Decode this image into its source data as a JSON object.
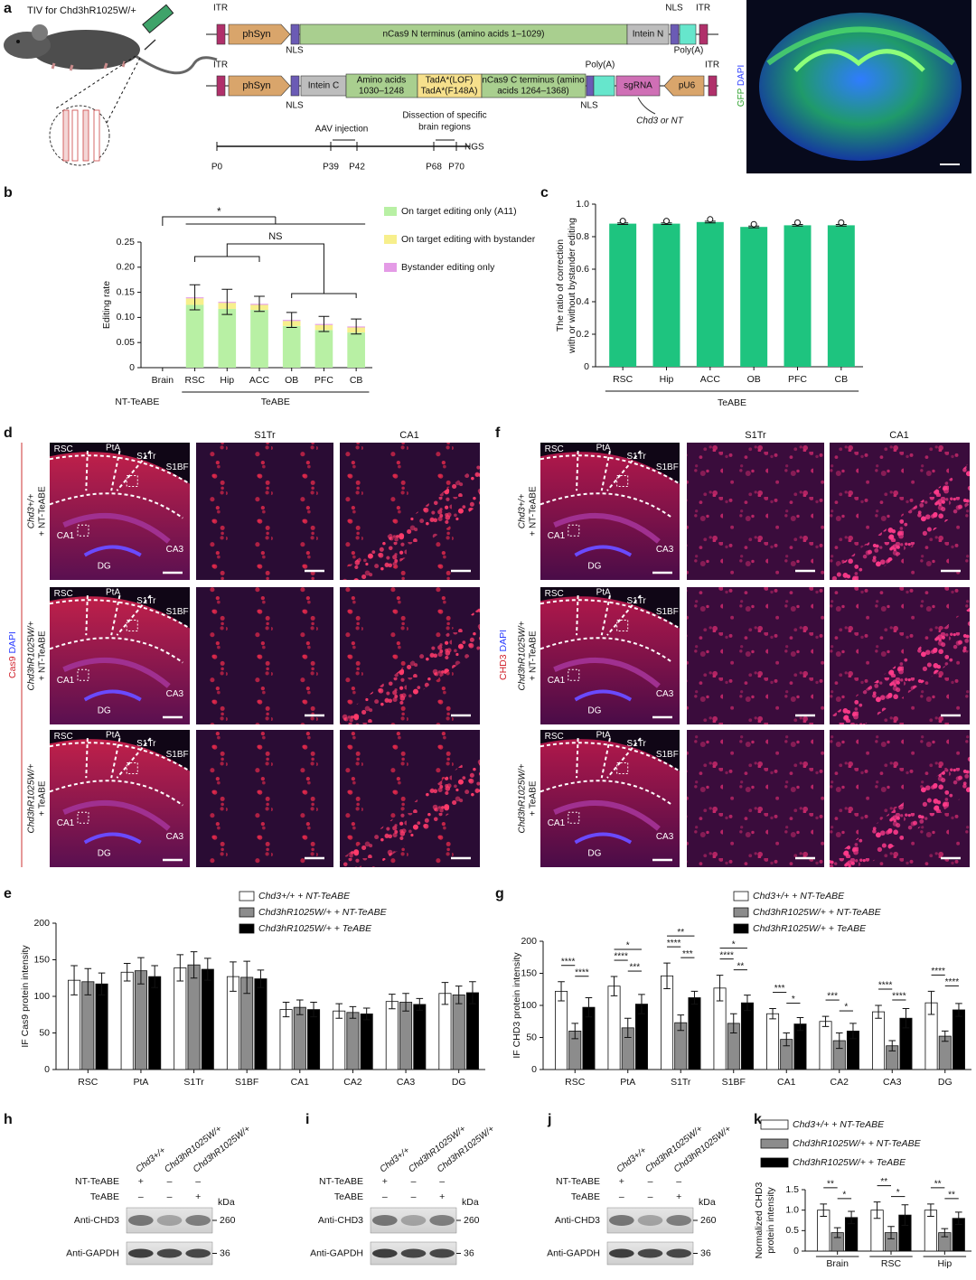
{
  "panel_labels": [
    "a",
    "b",
    "c",
    "d",
    "e",
    "f",
    "g",
    "h",
    "i",
    "j",
    "k"
  ],
  "a": {
    "mouse": "TIV for Chd3hR1025W/+",
    "vector1": [
      "ITR",
      "phSyn",
      "NLS",
      "nCas9 N terminus (amino acids 1–1029)",
      "Intein N",
      "NLS",
      "Poly(A)",
      "ITR"
    ],
    "vector2": [
      "ITR",
      "phSyn",
      "NLS",
      "Intein C",
      [
        "Amino acids",
        "1030–1248"
      ],
      [
        "TadA*(LOF)",
        "TadA*(F148A)"
      ],
      [
        "nCas9 C terminus (amino",
        "acids 1264–1368)"
      ],
      "Poly(A)",
      "NLS",
      "sgRNA",
      "pU6",
      "ITR",
      "Chd3 or NT"
    ],
    "timeline": {
      "points": [
        "P0",
        "P39",
        "P42",
        "P68",
        "P70"
      ],
      "events": [
        "AAV injection",
        [
          "Dissection of specific",
          "brain regions"
        ],
        "NGS"
      ]
    },
    "image_label": [
      "GFP",
      "DAPI"
    ]
  },
  "chart_data": [
    {
      "type": "bar",
      "stacked": true,
      "ylabel": "Editing rate",
      "categories": [
        "Brain",
        "RSC",
        "Hip",
        "ACC",
        "OB",
        "PFC",
        "CB"
      ],
      "series": [
        {
          "name": "On target editing only (A11)",
          "color": "#b8f0a4",
          "values": [
            0,
            0.125,
            0.117,
            0.115,
            0.083,
            0.075,
            0.07
          ]
        },
        {
          "name": "On target editing with bystander",
          "color": "#f7ef8c",
          "values": [
            0,
            0.013,
            0.012,
            0.01,
            0.01,
            0.01,
            0.01
          ]
        },
        {
          "name": "Bystander editing only",
          "color": "#e49be6",
          "values": [
            0,
            0.002,
            0.002,
            0.002,
            0.002,
            0.002,
            0.002
          ]
        }
      ],
      "errors": [
        0,
        0.025,
        0.025,
        0.015,
        0.015,
        0.015,
        0.015
      ],
      "groups": [
        "NT-TeABE",
        "TeABE"
      ],
      "annotations": [
        "*",
        "NS"
      ],
      "ylim": [
        0,
        0.25
      ],
      "yticks": [
        0,
        0.05,
        {
          "value": 0.1,
          "label": "0.10"
        },
        0.15,
        {
          "value": 0.2,
          "label": "0.20"
        },
        0.25
      ],
      "grid": false
    },
    {
      "type": "bar",
      "ylabel": [
        "The ratio of correction",
        "with or without bystander editing"
      ],
      "categories": [
        "RSC",
        "Hip",
        "ACC",
        "OB",
        "PFC",
        "CB"
      ],
      "values": [
        0.88,
        0.88,
        0.89,
        0.86,
        0.87,
        0.87
      ],
      "errors": [
        0.005,
        0.005,
        0.005,
        0.005,
        0.005,
        0.005
      ],
      "color": "#1ec47f",
      "groups": [
        "TeABE"
      ],
      "ylim": [
        0,
        1
      ],
      "yticks": [
        0,
        0.2,
        0.4,
        0.6,
        0.8,
        {
          "value": 1,
          "label": "1.0"
        }
      ],
      "grid": false
    },
    {
      "type": "bar",
      "ylabel": "IF Cas9 protein intensity",
      "categories": [
        "RSC",
        "PtA",
        "S1Tr",
        "S1BF",
        "CA1",
        "CA2",
        "CA3",
        "DG"
      ],
      "series": [
        {
          "name": "Chd3+/+ + NT-TeABE",
          "color": "#ffffff",
          "values": [
            122,
            133,
            139,
            127,
            82,
            80,
            93,
            104
          ],
          "errors": [
            20,
            12,
            18,
            20,
            10,
            10,
            10,
            15
          ]
        },
        {
          "name": "Chd3hR1025W/+ + NT-TeABE",
          "color": "#8c8c8c",
          "values": [
            120,
            135,
            143,
            126,
            85,
            78,
            92,
            102
          ],
          "errors": [
            18,
            18,
            18,
            22,
            10,
            8,
            12,
            12
          ]
        },
        {
          "name": "Chd3hR1025W/+ + TeABE",
          "color": "#000000",
          "values": [
            117,
            127,
            137,
            124,
            82,
            76,
            89,
            105
          ],
          "errors": [
            15,
            15,
            15,
            12,
            10,
            8,
            8,
            15
          ]
        }
      ],
      "ylim": [
        0,
        200
      ],
      "yticks": [
        0,
        50,
        100,
        150,
        200
      ],
      "grid": false
    },
    {
      "type": "bar",
      "ylabel": "IF CHD3 protein intensity",
      "categories": [
        "RSC",
        "PtA",
        "S1Tr",
        "S1BF",
        "CA1",
        "CA2",
        "CA3",
        "DG"
      ],
      "series": [
        {
          "name": "Chd3+/+ + NT-TeABE",
          "color": "#ffffff",
          "values": [
            122,
            130,
            146,
            127,
            87,
            75,
            90,
            104
          ],
          "errors": [
            15,
            15,
            20,
            20,
            8,
            8,
            10,
            18
          ]
        },
        {
          "name": "Chd3hR1025W/+ + NT-TeABE",
          "color": "#8c8c8c",
          "values": [
            60,
            65,
            73,
            72,
            47,
            45,
            37,
            52
          ],
          "errors": [
            12,
            15,
            12,
            15,
            10,
            12,
            8,
            8
          ]
        },
        {
          "name": "Chd3hR1025W/+ + TeABE",
          "color": "#000000",
          "values": [
            97,
            102,
            112,
            104,
            71,
            60,
            80,
            93
          ],
          "errors": [
            15,
            15,
            10,
            12,
            10,
            12,
            15,
            10
          ]
        }
      ],
      "significance": [
        [
          "****",
          "****"
        ],
        [
          "****",
          "***",
          "*"
        ],
        [
          "****",
          "***",
          "**"
        ],
        [
          "****",
          "**",
          "*"
        ],
        [
          "***",
          "*"
        ],
        [
          "***",
          "*"
        ],
        [
          "****",
          "****"
        ],
        [
          "****",
          "****"
        ]
      ],
      "ylim": [
        0,
        200
      ],
      "yticks": [
        0,
        50,
        100,
        150,
        200
      ],
      "grid": false
    },
    {
      "type": "bar",
      "ylabel": [
        "Normalized CHD3",
        "protein intensity"
      ],
      "categories": [
        "Brain",
        "RSC",
        "Hip"
      ],
      "series": [
        {
          "name": "Chd3+/+ + NT-TeABE",
          "color": "#ffffff",
          "values": [
            1.0,
            1.0,
            1.0
          ],
          "errors": [
            0.15,
            0.2,
            0.15
          ]
        },
        {
          "name": "Chd3hR1025W/+ + NT-TeABE",
          "color": "#8c8c8c",
          "values": [
            0.45,
            0.45,
            0.45
          ],
          "errors": [
            0.12,
            0.15,
            0.1
          ]
        },
        {
          "name": "Chd3hR1025W/+ + TeABE",
          "color": "#000000",
          "values": [
            0.82,
            0.88,
            0.8
          ],
          "errors": [
            0.15,
            0.25,
            0.15
          ]
        }
      ],
      "significance": [
        [
          "**",
          "*"
        ],
        [
          "**",
          "*"
        ],
        [
          "**",
          "**"
        ]
      ],
      "ylim": [
        0,
        1.5
      ],
      "yticks": [
        0,
        0.5,
        {
          "value": 1,
          "label": "1.0"
        },
        1.5
      ],
      "grid": false
    }
  ],
  "d": {
    "stain": [
      "Cas9",
      "DAPI"
    ],
    "columns": [
      "S1Tr",
      "CA1"
    ],
    "regions": [
      "RSC",
      "PtA",
      "S1Tr",
      "S1BF",
      "CA1",
      "CA3",
      "DG"
    ],
    "rows": [
      [
        "Chd3+/+",
        "+ NT-TeABE"
      ],
      [
        "Chd3hR1025W/+",
        "+ NT-TeABE"
      ],
      [
        "Chd3hR1025W/+",
        "+ TeABE"
      ]
    ]
  },
  "f": {
    "stain": [
      "CHD3",
      "DAPI"
    ],
    "columns": [
      "S1Tr",
      "CA1"
    ],
    "regions": [
      "RSC",
      "PtA",
      "S1Tr",
      "S1BF",
      "CA1",
      "CA3",
      "DG"
    ],
    "rows": [
      [
        "Chd3+/+",
        "+ NT-TeABE"
      ],
      [
        "Chd3hR1025W/+",
        "+ NT-TeABE"
      ],
      [
        "Chd3hR1025W/+",
        "+ TeABE"
      ]
    ]
  },
  "blots": [
    {
      "lanes": [
        "Chd3+/+",
        "Chd3hR1025W/+",
        "Chd3hR1025W/+"
      ],
      "rows": [
        {
          "label": "NT-TeABE",
          "marks": [
            "+",
            "–",
            "–"
          ]
        },
        {
          "label": "TeABE",
          "marks": [
            "–",
            "–",
            "+"
          ]
        }
      ],
      "kda": "kDa",
      "bands": [
        {
          "label": "Anti-CHD3",
          "size": 260
        },
        {
          "label": "Anti-GAPDH",
          "size": 36
        }
      ]
    },
    {
      "lanes": [
        "Chd3+/+",
        "Chd3hR1025W/+",
        "Chd3hR1025W/+"
      ],
      "rows": [
        {
          "label": "NT-TeABE",
          "marks": [
            "+",
            "–",
            "–"
          ]
        },
        {
          "label": "TeABE",
          "marks": [
            "–",
            "–",
            "+"
          ]
        }
      ],
      "kda": "kDa",
      "bands": [
        {
          "label": "Anti-CHD3",
          "size": 260
        },
        {
          "label": "Anti-GAPDH",
          "size": 36
        }
      ]
    },
    {
      "lanes": [
        "Chd3+/+",
        "Chd3hR1025W/+",
        "Chd3hR1025W/+"
      ],
      "rows": [
        {
          "label": "NT-TeABE",
          "marks": [
            "+",
            "–",
            "–"
          ]
        },
        {
          "label": "TeABE",
          "marks": [
            "–",
            "–",
            "+"
          ]
        }
      ],
      "kda": "kDa",
      "bands": [
        {
          "label": "Anti-CHD3",
          "size": 260
        },
        {
          "label": "Anti-GAPDH",
          "size": 36
        }
      ]
    }
  ]
}
